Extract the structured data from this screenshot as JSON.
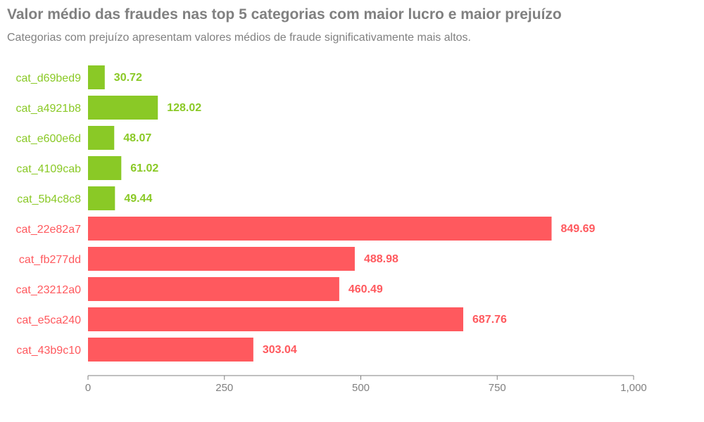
{
  "colors": {
    "lucro": "#8ac926",
    "prejuizo": "#ff595e",
    "text": "#808080",
    "axis": "#808080"
  },
  "chart_data": {
    "type": "bar",
    "orientation": "horizontal",
    "title": "Valor médio das fraudes nas top 5 categorias com maior lucro e maior prejuízo",
    "subtitle": "Categorias com prejuízo apresentam valores médios de fraude significativamente mais altos.",
    "xlabel": "",
    "ylabel": "",
    "xlim": [
      0,
      1000
    ],
    "xticks": [
      0,
      250,
      500,
      750,
      1000
    ],
    "xtick_labels": [
      "0",
      "250",
      "500",
      "750",
      "1,000"
    ],
    "grid": false,
    "categories": [
      "cat_d69bed9",
      "cat_a4921b8",
      "cat_e600e6d",
      "cat_4109cab",
      "cat_5b4c8c8",
      "cat_22e82a7",
      "cat_fb277dd",
      "cat_23212a0",
      "cat_e5ca240",
      "cat_43b9c10"
    ],
    "values": [
      30.72,
      128.02,
      48.07,
      61.02,
      49.44,
      849.69,
      488.98,
      460.49,
      687.76,
      303.04
    ],
    "value_labels": [
      "30.72",
      "128.02",
      "48.07",
      "61.02",
      "49.44",
      "849.69",
      "488.98",
      "460.49",
      "687.76",
      "303.04"
    ],
    "groups": [
      "lucro",
      "lucro",
      "lucro",
      "lucro",
      "lucro",
      "prejuizo",
      "prejuizo",
      "prejuizo",
      "prejuizo",
      "prejuizo"
    ]
  }
}
